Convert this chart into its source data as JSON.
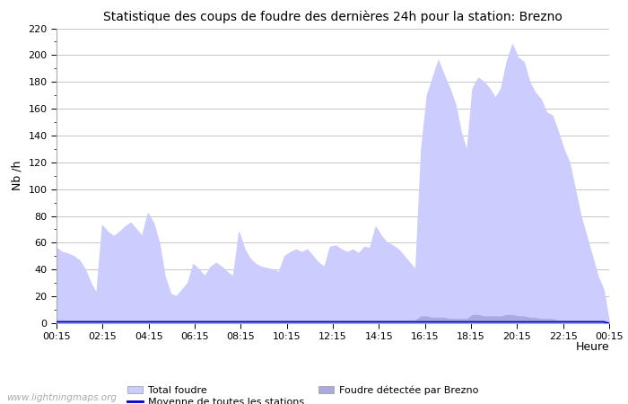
{
  "title": "Statistique des coups de foudre des dernières 24h pour la station: Brezno",
  "xlabel": "Heure",
  "ylabel": "Nb /h",
  "watermark": "www.lightningmaps.org",
  "ylim": [
    0,
    220
  ],
  "yticks": [
    0,
    20,
    40,
    60,
    80,
    100,
    120,
    140,
    160,
    180,
    200,
    220
  ],
  "xtick_labels": [
    "00:15",
    "02:15",
    "04:15",
    "06:15",
    "08:15",
    "10:15",
    "12:15",
    "14:15",
    "16:15",
    "18:15",
    "20:15",
    "22:15",
    "00:15"
  ],
  "color_total_foudre": "#ccccff",
  "color_brezno": "#aaaadd",
  "color_moyenne": "#0000cc",
  "total_foudre": [
    56,
    53,
    52,
    50,
    47,
    40,
    30,
    22,
    73,
    68,
    65,
    68,
    72,
    75,
    70,
    65,
    82,
    75,
    60,
    35,
    22,
    20,
    25,
    30,
    44,
    40,
    35,
    42,
    45,
    42,
    38,
    35,
    68,
    55,
    48,
    44,
    42,
    41,
    40,
    38,
    50,
    53,
    55,
    53,
    55,
    50,
    45,
    42,
    57,
    58,
    55,
    53,
    55,
    52,
    57,
    56,
    72,
    65,
    60,
    58,
    55,
    50,
    45,
    40,
    130,
    170,
    183,
    196,
    185,
    175,
    163,
    142,
    128,
    175,
    183,
    180,
    175,
    168,
    175,
    195,
    208,
    198,
    195,
    180,
    172,
    167,
    157,
    155,
    143,
    130,
    120,
    100,
    80,
    65,
    50,
    35,
    25,
    0
  ],
  "brezno": [
    2,
    2,
    2,
    2,
    2,
    2,
    2,
    2,
    2,
    2,
    2,
    2,
    2,
    2,
    2,
    2,
    2,
    2,
    2,
    2,
    2,
    2,
    2,
    2,
    2,
    2,
    2,
    2,
    2,
    2,
    2,
    2,
    2,
    2,
    2,
    2,
    2,
    2,
    2,
    2,
    2,
    2,
    2,
    2,
    2,
    2,
    2,
    2,
    2,
    2,
    2,
    2,
    2,
    2,
    2,
    2,
    2,
    2,
    2,
    2,
    2,
    2,
    2,
    2,
    5,
    5,
    4,
    4,
    4,
    3,
    3,
    3,
    3,
    6,
    6,
    5,
    5,
    5,
    5,
    6,
    6,
    5,
    5,
    4,
    4,
    3,
    3,
    3,
    2,
    2,
    2,
    2,
    2,
    2,
    2,
    2,
    2,
    0
  ],
  "moyenne": [
    1,
    1,
    1,
    1,
    1,
    1,
    1,
    1,
    1,
    1,
    1,
    1,
    1,
    1,
    1,
    1,
    1,
    1,
    1,
    1,
    1,
    1,
    1,
    1,
    1,
    1,
    1,
    1,
    1,
    1,
    1,
    1,
    1,
    1,
    1,
    1,
    1,
    1,
    1,
    1,
    1,
    1,
    1,
    1,
    1,
    1,
    1,
    1,
    1,
    1,
    1,
    1,
    1,
    1,
    1,
    1,
    1,
    1,
    1,
    1,
    1,
    1,
    1,
    1,
    1,
    1,
    1,
    1,
    1,
    1,
    1,
    1,
    1,
    1,
    1,
    1,
    1,
    1,
    1,
    1,
    1,
    1,
    1,
    1,
    1,
    1,
    1,
    1,
    1,
    1,
    1,
    1,
    1,
    1,
    1,
    1,
    1,
    0
  ]
}
